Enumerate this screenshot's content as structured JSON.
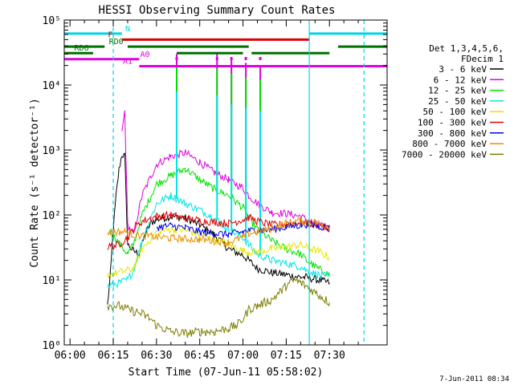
{
  "chart_data": {
    "type": "line",
    "title": "HESSI Observing Summary Count Rates",
    "xlabel": "Start Time (07-Jun-11 05:58:02)",
    "ylabel": "Count Rate (s⁻¹ detector⁻¹)",
    "x_ticks": [
      "06:00",
      "06:15",
      "06:30",
      "06:45",
      "07:00",
      "07:15",
      "07:30"
    ],
    "y_ticks": [
      "10⁰",
      "10¹",
      "10²",
      "10³",
      "10⁴",
      "10⁵"
    ],
    "x_range_min": [
      -2,
      110
    ],
    "yscale": "log",
    "ylim": [
      1,
      100000
    ],
    "legend_header": [
      "Det 1,3,4,5,6,",
      "FDecim 1"
    ],
    "footer": "7-Jun-2011 08:34",
    "vlines_min": [
      15,
      83,
      102
    ],
    "flags": [
      {
        "label": "N",
        "color": "#00d4e6",
        "y": 62000,
        "segments": [
          [
            -2,
            18
          ],
          [
            83,
            110
          ]
        ],
        "label_x": 20
      },
      {
        "label": "F",
        "color": "#e00000",
        "y": 50000,
        "segments": [
          [
            18,
            83
          ]
        ],
        "label_x": 14
      },
      {
        "label": "RD0",
        "color": "#007000",
        "y": 39000,
        "segments": [
          [
            -2,
            12
          ],
          [
            20,
            62
          ],
          [
            93,
            110
          ]
        ],
        "label_x": 16
      },
      {
        "label": "RD6",
        "color": "#007000",
        "y": 31000,
        "segments": [
          [
            -2,
            8
          ],
          [
            37,
            60
          ],
          [
            63,
            90
          ]
        ],
        "label_x": 4
      },
      {
        "label": "A0",
        "color": "#e000e0",
        "y": 25000,
        "segments": [
          [
            -2,
            24
          ]
        ],
        "label_x": 26
      },
      {
        "label": "A1",
        "color": "#e000e0",
        "y": 19500,
        "segments": [
          [
            24,
            110
          ]
        ],
        "label_x": 20
      }
    ],
    "series": [
      {
        "name": "3 - 6 keV",
        "color": "#000000",
        "points": [
          [
            13,
            4
          ],
          [
            14,
            12
          ],
          [
            15,
            60
          ],
          [
            16,
            200
          ],
          [
            17,
            500
          ],
          [
            18,
            850
          ],
          [
            19,
            800
          ],
          [
            20,
            35
          ],
          [
            22,
            28
          ],
          [
            24,
            25
          ],
          [
            26,
            50
          ],
          [
            28,
            75
          ],
          [
            30,
            85
          ],
          [
            35,
            95
          ],
          [
            40,
            90
          ],
          [
            45,
            70
          ],
          [
            50,
            50
          ],
          [
            55,
            30
          ],
          [
            60,
            24
          ],
          [
            62,
            20
          ],
          [
            65,
            15
          ],
          [
            70,
            13
          ],
          [
            75,
            12
          ],
          [
            80,
            11
          ],
          [
            82,
            11
          ],
          [
            86,
            10
          ],
          [
            90,
            9
          ]
        ],
        "spikes": []
      },
      {
        "name": "6 - 12 keV",
        "color": "#e000e0",
        "points": [
          [
            18,
            1800
          ],
          [
            19,
            4000
          ],
          [
            20,
            70
          ],
          [
            22,
            50
          ],
          [
            25,
            200
          ],
          [
            30,
            600
          ],
          [
            35,
            800
          ],
          [
            40,
            900
          ],
          [
            45,
            650
          ],
          [
            50,
            450
          ],
          [
            55,
            350
          ],
          [
            60,
            260
          ],
          [
            62,
            200
          ],
          [
            65,
            150
          ],
          [
            70,
            110
          ],
          [
            75,
            105
          ],
          [
            80,
            95
          ],
          [
            82,
            85
          ],
          [
            86,
            70
          ],
          [
            90,
            60
          ]
        ],
        "spikes": [
          [
            37,
            30000
          ],
          [
            51,
            30000
          ],
          [
            56,
            25000
          ],
          [
            61,
            22000
          ],
          [
            66,
            20000
          ]
        ]
      },
      {
        "name": "12 - 25 keV",
        "color": "#00e000",
        "points": [
          [
            14,
            55
          ],
          [
            20,
            25
          ],
          [
            22,
            35
          ],
          [
            25,
            100
          ],
          [
            30,
            300
          ],
          [
            35,
            400
          ],
          [
            40,
            520
          ],
          [
            45,
            350
          ],
          [
            50,
            250
          ],
          [
            55,
            200
          ],
          [
            60,
            130
          ],
          [
            62,
            90
          ],
          [
            65,
            60
          ],
          [
            70,
            40
          ],
          [
            75,
            30
          ],
          [
            80,
            25
          ],
          [
            82,
            20
          ],
          [
            86,
            15
          ],
          [
            90,
            12
          ]
        ],
        "spikes": [
          [
            37,
            20000
          ],
          [
            51,
            18000
          ],
          [
            56,
            15000
          ],
          [
            61,
            13000
          ],
          [
            66,
            12000
          ]
        ]
      },
      {
        "name": "25 - 50 keV",
        "color": "#00e6e6",
        "points": [
          [
            13,
            8
          ],
          [
            17,
            9
          ],
          [
            20,
            10
          ],
          [
            22,
            14
          ],
          [
            25,
            40
          ],
          [
            30,
            150
          ],
          [
            35,
            200
          ],
          [
            40,
            150
          ],
          [
            45,
            120
          ],
          [
            50,
            90
          ],
          [
            55,
            60
          ],
          [
            60,
            45
          ],
          [
            62,
            35
          ],
          [
            65,
            25
          ],
          [
            70,
            20
          ],
          [
            75,
            18
          ],
          [
            80,
            16
          ],
          [
            82,
            14
          ],
          [
            86,
            12
          ],
          [
            90,
            11
          ]
        ],
        "spikes": [
          [
            37,
            8000
          ],
          [
            51,
            7000
          ],
          [
            56,
            5000
          ],
          [
            61,
            4500
          ],
          [
            66,
            4000
          ]
        ]
      },
      {
        "name": "50 - 100 keV",
        "color": "#e6e600",
        "points": [
          [
            13,
            12
          ],
          [
            20,
            14
          ],
          [
            22,
            15
          ],
          [
            25,
            30
          ],
          [
            30,
            55
          ],
          [
            35,
            60
          ],
          [
            40,
            58
          ],
          [
            45,
            50
          ],
          [
            50,
            42
          ],
          [
            55,
            36
          ],
          [
            60,
            28
          ],
          [
            62,
            27
          ],
          [
            65,
            27
          ],
          [
            70,
            30
          ],
          [
            75,
            32
          ],
          [
            80,
            35
          ],
          [
            82,
            32
          ],
          [
            86,
            28
          ],
          [
            90,
            22
          ]
        ],
        "spikes": []
      },
      {
        "name": "100 - 300 keV",
        "color": "#e00000",
        "points": [
          [
            13,
            32
          ],
          [
            17,
            35
          ],
          [
            20,
            45
          ],
          [
            22,
            60
          ],
          [
            25,
            80
          ],
          [
            30,
            95
          ],
          [
            35,
            100
          ],
          [
            40,
            88
          ],
          [
            45,
            82
          ],
          [
            50,
            78
          ],
          [
            55,
            74
          ],
          [
            60,
            85
          ],
          [
            62,
            92
          ],
          [
            65,
            80
          ],
          [
            70,
            70
          ],
          [
            75,
            72
          ],
          [
            80,
            78
          ],
          [
            82,
            74
          ],
          [
            86,
            70
          ],
          [
            90,
            62
          ]
        ],
        "spikes": []
      },
      {
        "name": "300 - 800 keV",
        "color": "#0000e6",
        "points": [
          [
            30,
            65
          ],
          [
            35,
            68
          ],
          [
            40,
            63
          ],
          [
            45,
            55
          ],
          [
            50,
            52
          ],
          [
            55,
            50
          ],
          [
            60,
            55
          ],
          [
            62,
            57
          ],
          [
            65,
            58
          ],
          [
            70,
            60
          ],
          [
            75,
            65
          ],
          [
            80,
            70
          ],
          [
            82,
            72
          ],
          [
            86,
            68
          ],
          [
            90,
            62
          ]
        ],
        "spikes": []
      },
      {
        "name": "800 - 7000 keV",
        "color": "#e69000",
        "points": [
          [
            13,
            55
          ],
          [
            20,
            55
          ],
          [
            22,
            50
          ],
          [
            25,
            48
          ],
          [
            30,
            46
          ],
          [
            35,
            44
          ],
          [
            40,
            43
          ],
          [
            45,
            42
          ],
          [
            50,
            40
          ],
          [
            55,
            38
          ],
          [
            60,
            45
          ],
          [
            62,
            52
          ],
          [
            65,
            55
          ],
          [
            70,
            62
          ],
          [
            75,
            75
          ],
          [
            80,
            82
          ],
          [
            82,
            80
          ],
          [
            86,
            75
          ],
          [
            90,
            65
          ]
        ],
        "spikes": []
      },
      {
        "name": "7000 - 20000 keV",
        "color": "#7d7d00",
        "points": [
          [
            13,
            4
          ],
          [
            17,
            4
          ],
          [
            20,
            3.5
          ],
          [
            25,
            3
          ],
          [
            28,
            2.5
          ],
          [
            30,
            2
          ],
          [
            35,
            1.6
          ],
          [
            40,
            1.5
          ],
          [
            45,
            1.6
          ],
          [
            50,
            1.6
          ],
          [
            55,
            1.8
          ],
          [
            58,
            2
          ],
          [
            60,
            2.5
          ],
          [
            62,
            3.5
          ],
          [
            65,
            4
          ],
          [
            70,
            5
          ],
          [
            75,
            8
          ],
          [
            78,
            10
          ],
          [
            80,
            9
          ],
          [
            82,
            8
          ],
          [
            86,
            6
          ],
          [
            90,
            4.5
          ]
        ],
        "spikes": []
      }
    ]
  }
}
